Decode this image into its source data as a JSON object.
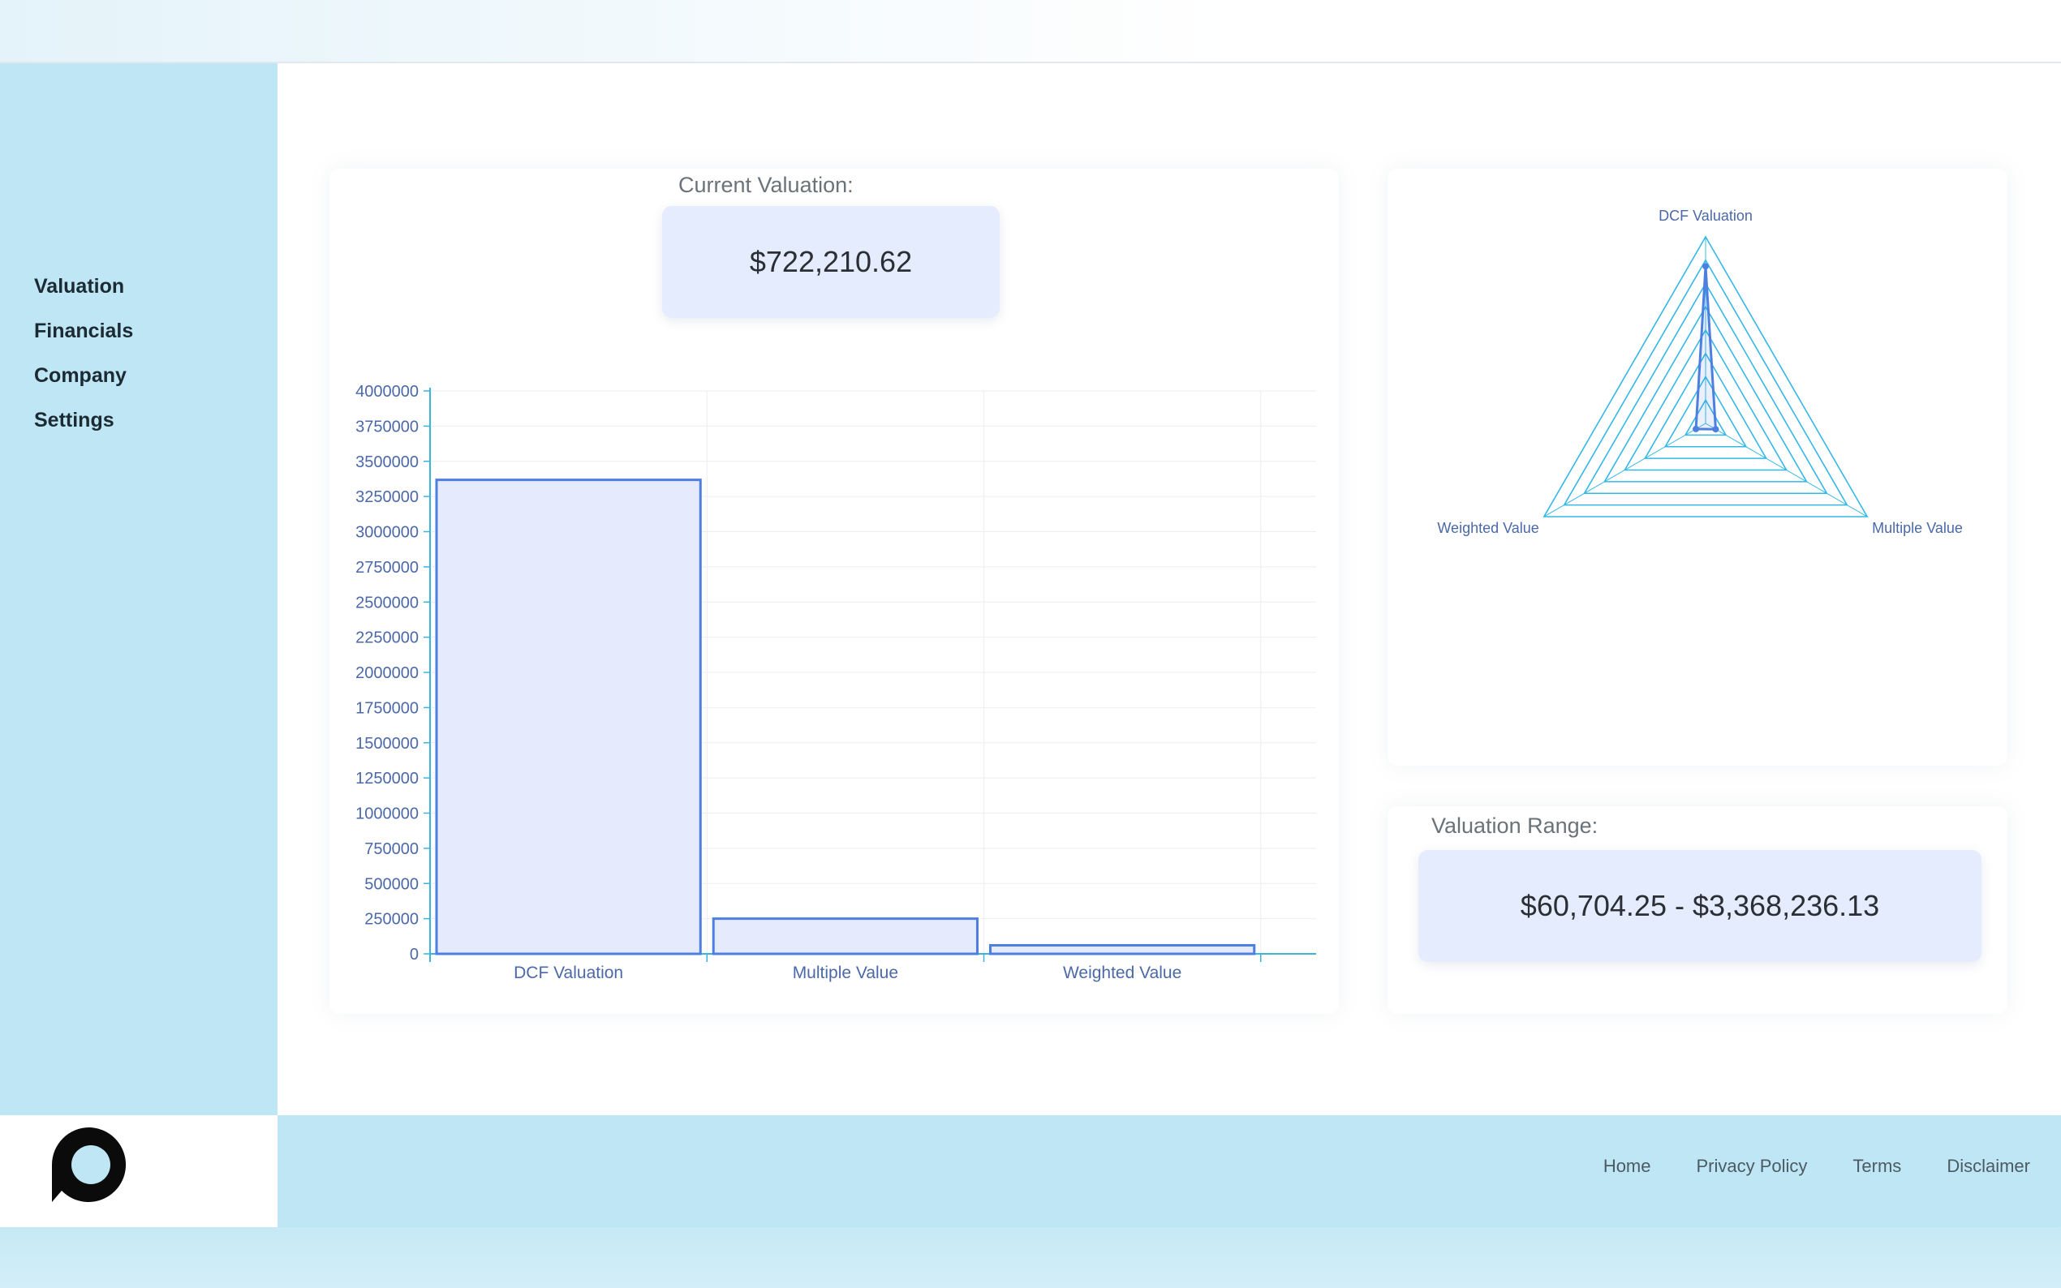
{
  "sidebar": {
    "items": [
      {
        "label": "Valuation"
      },
      {
        "label": "Financials"
      },
      {
        "label": "Company"
      },
      {
        "label": "Settings"
      }
    ]
  },
  "main": {
    "current_valuation": {
      "label": "Current Valuation:",
      "value": "$722,210.62"
    },
    "valuation_range": {
      "label": "Valuation Range:",
      "value": "$60,704.25 - $3,368,236.13"
    }
  },
  "footer": {
    "links": [
      {
        "label": "Home"
      },
      {
        "label": "Privacy Policy"
      },
      {
        "label": "Terms"
      },
      {
        "label": "Disclaimer"
      }
    ]
  },
  "colors": {
    "sidebar_bg": "#bfe6f5",
    "value_box_bg": "#e5ecfd",
    "bar_stroke": "#4d7fe0",
    "bar_fill": "#e5eafc",
    "axis": "#3bb4dc",
    "radar_grid": "#35b8e6"
  },
  "chart_data": [
    {
      "type": "bar",
      "categories": [
        "DCF Valuation",
        "Multiple Value",
        "Weighted Value"
      ],
      "values": [
        3368236.13,
        250000,
        60704.25
      ],
      "yticks": [
        "0",
        "250000",
        "500000",
        "750000",
        "1000000",
        "1250000",
        "1500000",
        "1750000",
        "2000000",
        "2250000",
        "2500000",
        "2750000",
        "3000000",
        "3250000",
        "3500000",
        "3750000",
        "4000000"
      ],
      "ylim": [
        0,
        4000000
      ],
      "grid": true,
      "title": "",
      "xlabel": "",
      "ylabel": ""
    },
    {
      "type": "radar",
      "axes": [
        "DCF Valuation",
        "Multiple Value",
        "Weighted Value"
      ],
      "values": [
        3368236.13,
        250000,
        60704.25
      ],
      "max": 4000000,
      "rings": 8
    }
  ]
}
